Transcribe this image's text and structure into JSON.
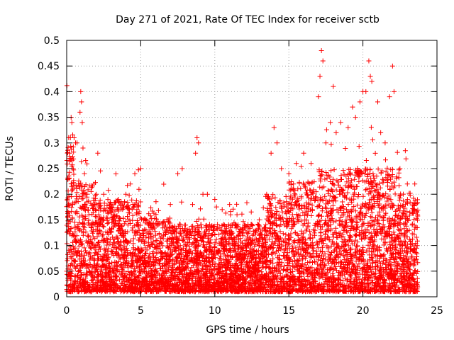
{
  "chart_data": {
    "type": "scatter",
    "title": "Day 271 of 2021, Rate Of TEC Index for receiver sctb",
    "xlabel": "GPS time / hours",
    "ylabel": "ROTI / TECUs",
    "xlim": [
      0,
      25
    ],
    "ylim": [
      0,
      0.5
    ],
    "x_ticks": [
      0,
      5,
      10,
      15,
      20,
      25
    ],
    "y_ticks": [
      0,
      0.05,
      0.1,
      0.15,
      0.2,
      0.25,
      0.3,
      0.35,
      0.4,
      0.45,
      0.5
    ],
    "x_tick_labels": [
      "0",
      "5",
      "10",
      "15",
      "20",
      "25"
    ],
    "y_tick_labels": [
      "0",
      "0.05",
      "0.1",
      "0.15",
      "0.2",
      "0.25",
      "0.3",
      "0.35",
      "0.4",
      "0.45",
      "0.5"
    ],
    "grid": true,
    "marker": "plus",
    "marker_color": "#ff0000",
    "series": [
      {
        "points": [
          [
            0.1,
            0.06
          ],
          [
            0.15,
            0.23
          ],
          [
            0.2,
            0.28
          ],
          [
            0.25,
            0.31
          ],
          [
            0.3,
            0.35
          ],
          [
            0.35,
            0.34
          ],
          [
            0.4,
            0.18
          ],
          [
            0.45,
            0.12
          ],
          [
            0.5,
            0.31
          ],
          [
            0.6,
            0.3
          ],
          [
            0.7,
            0.3
          ],
          [
            0.8,
            0.22
          ],
          [
            0.9,
            0.36
          ],
          [
            0.95,
            0.4
          ],
          [
            1.0,
            0.38
          ],
          [
            1.05,
            0.34
          ],
          [
            1.1,
            0.29
          ],
          [
            1.2,
            0.24
          ],
          [
            1.3,
            0.2
          ],
          [
            1.5,
            0.16
          ],
          [
            2.0,
            0.2
          ],
          [
            2.1,
            0.28
          ],
          [
            2.5,
            0.2
          ],
          [
            3.0,
            0.18
          ],
          [
            3.5,
            0.19
          ],
          [
            4.0,
            0.2
          ],
          [
            4.3,
            0.22
          ],
          [
            4.6,
            0.24
          ],
          [
            5.0,
            0.25
          ],
          [
            5.2,
            0.15
          ],
          [
            5.5,
            0.1
          ],
          [
            6.0,
            0.12
          ],
          [
            6.5,
            0.14
          ],
          [
            7.0,
            0.18
          ],
          [
            7.5,
            0.24
          ],
          [
            7.8,
            0.25
          ],
          [
            8.5,
            0.18
          ],
          [
            8.7,
            0.28
          ],
          [
            8.8,
            0.31
          ],
          [
            8.9,
            0.3
          ],
          [
            9.2,
            0.2
          ],
          [
            9.5,
            0.2
          ],
          [
            10.0,
            0.19
          ],
          [
            10.5,
            0.17
          ],
          [
            11.0,
            0.18
          ],
          [
            11.5,
            0.16
          ],
          [
            12.0,
            0.14
          ],
          [
            12.5,
            0.14
          ],
          [
            13.0,
            0.15
          ],
          [
            13.5,
            0.2
          ],
          [
            13.8,
            0.28
          ],
          [
            14.0,
            0.33
          ],
          [
            14.2,
            0.3
          ],
          [
            14.5,
            0.25
          ],
          [
            15.0,
            0.24
          ],
          [
            15.5,
            0.26
          ],
          [
            16.0,
            0.28
          ],
          [
            16.5,
            0.26
          ],
          [
            17.0,
            0.39
          ],
          [
            17.1,
            0.43
          ],
          [
            17.2,
            0.48
          ],
          [
            17.3,
            0.46
          ],
          [
            17.5,
            0.3
          ],
          [
            17.8,
            0.34
          ],
          [
            18.0,
            0.41
          ],
          [
            18.5,
            0.34
          ],
          [
            19.0,
            0.33
          ],
          [
            19.3,
            0.37
          ],
          [
            19.5,
            0.35
          ],
          [
            19.8,
            0.38
          ],
          [
            20.0,
            0.4
          ],
          [
            20.2,
            0.4
          ],
          [
            20.4,
            0.46
          ],
          [
            20.5,
            0.43
          ],
          [
            20.6,
            0.42
          ],
          [
            21.0,
            0.38
          ],
          [
            21.2,
            0.32
          ],
          [
            21.5,
            0.3
          ],
          [
            21.8,
            0.39
          ],
          [
            22.0,
            0.45
          ],
          [
            22.1,
            0.4
          ],
          [
            22.5,
            0.25
          ],
          [
            23.0,
            0.22
          ],
          [
            23.5,
            0.22
          ]
        ]
      }
    ]
  }
}
